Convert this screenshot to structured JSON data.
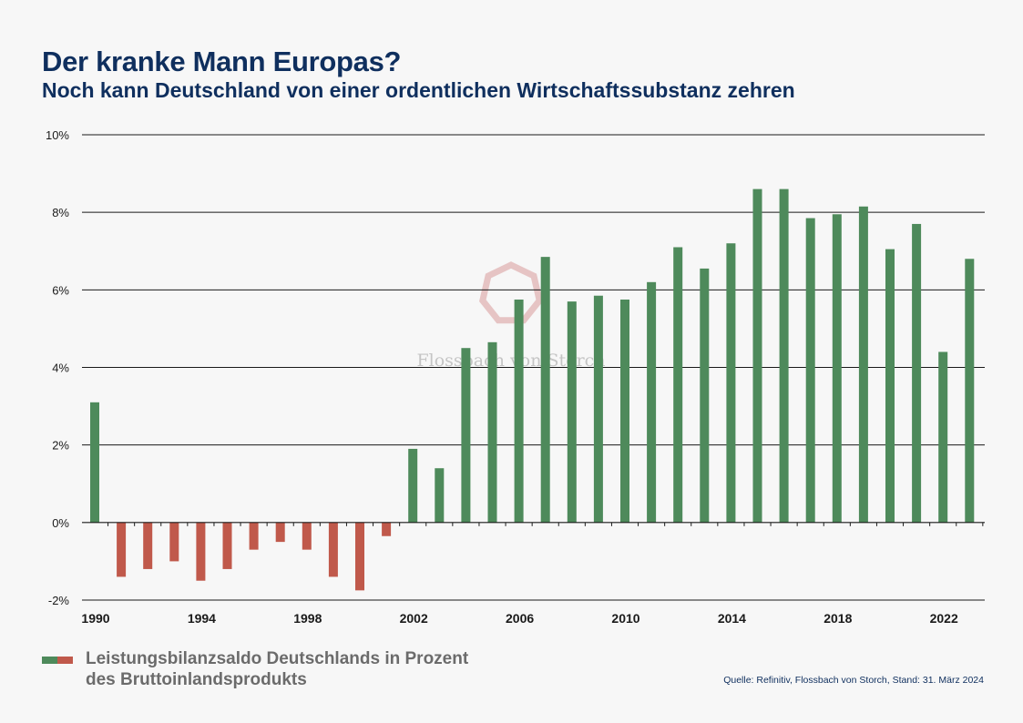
{
  "header": {
    "title": "Der kranke Mann Europas?",
    "subtitle": "Noch kann Deutschland von einer ordentlichen Wirtschaftssubstanz zehren"
  },
  "watermark": {
    "text": "Flossbach von Storch"
  },
  "legend": {
    "line1": "Leistungsbilanzsaldo Deutschlands in Prozent",
    "line2": "des Bruttoinlandsprodukts"
  },
  "source": "Quelle: Refinitiv, Flossbach von Storch,  Stand: 31. März 2024",
  "colors": {
    "positive": "#4e8a5b",
    "negative": "#c0594b",
    "title": "#0f2f5e"
  },
  "chart_data": {
    "type": "bar",
    "title": "Der kranke Mann Europas?",
    "subtitle": "Noch kann Deutschland von einer ordentlichen Wirtschaftssubstanz zehren",
    "xlabel": "",
    "ylabel": "",
    "ylim": [
      -2,
      10
    ],
    "yticks": [
      10,
      8,
      6,
      4,
      2,
      0,
      -2
    ],
    "ytick_labels": [
      "10%",
      "8%",
      "6%",
      "4%",
      "2%",
      "0%",
      "-2%"
    ],
    "xtick_labels": [
      "1990",
      "1994",
      "1998",
      "2002",
      "2006",
      "2010",
      "2014",
      "2018",
      "2022"
    ],
    "grid": true,
    "categories": [
      1990,
      1991,
      1992,
      1993,
      1994,
      1995,
      1996,
      1997,
      1998,
      1999,
      2000,
      2001,
      2002,
      2003,
      2004,
      2005,
      2006,
      2007,
      2008,
      2009,
      2010,
      2011,
      2012,
      2013,
      2014,
      2015,
      2016,
      2017,
      2018,
      2019,
      2020,
      2021,
      2022,
      2023
    ],
    "values": [
      3.1,
      -1.4,
      -1.2,
      -1.0,
      -1.5,
      -1.2,
      -0.7,
      -0.5,
      -0.7,
      -1.4,
      -1.75,
      -0.35,
      1.9,
      1.4,
      4.5,
      4.65,
      5.75,
      6.85,
      5.7,
      5.85,
      5.75,
      6.2,
      7.1,
      6.55,
      7.2,
      8.6,
      8.6,
      7.85,
      7.95,
      8.15,
      7.05,
      7.7,
      4.4,
      6.8
    ],
    "legend": [
      "Leistungsbilanzsaldo Deutschlands in Prozent des Bruttoinlandsprodukts"
    ]
  }
}
